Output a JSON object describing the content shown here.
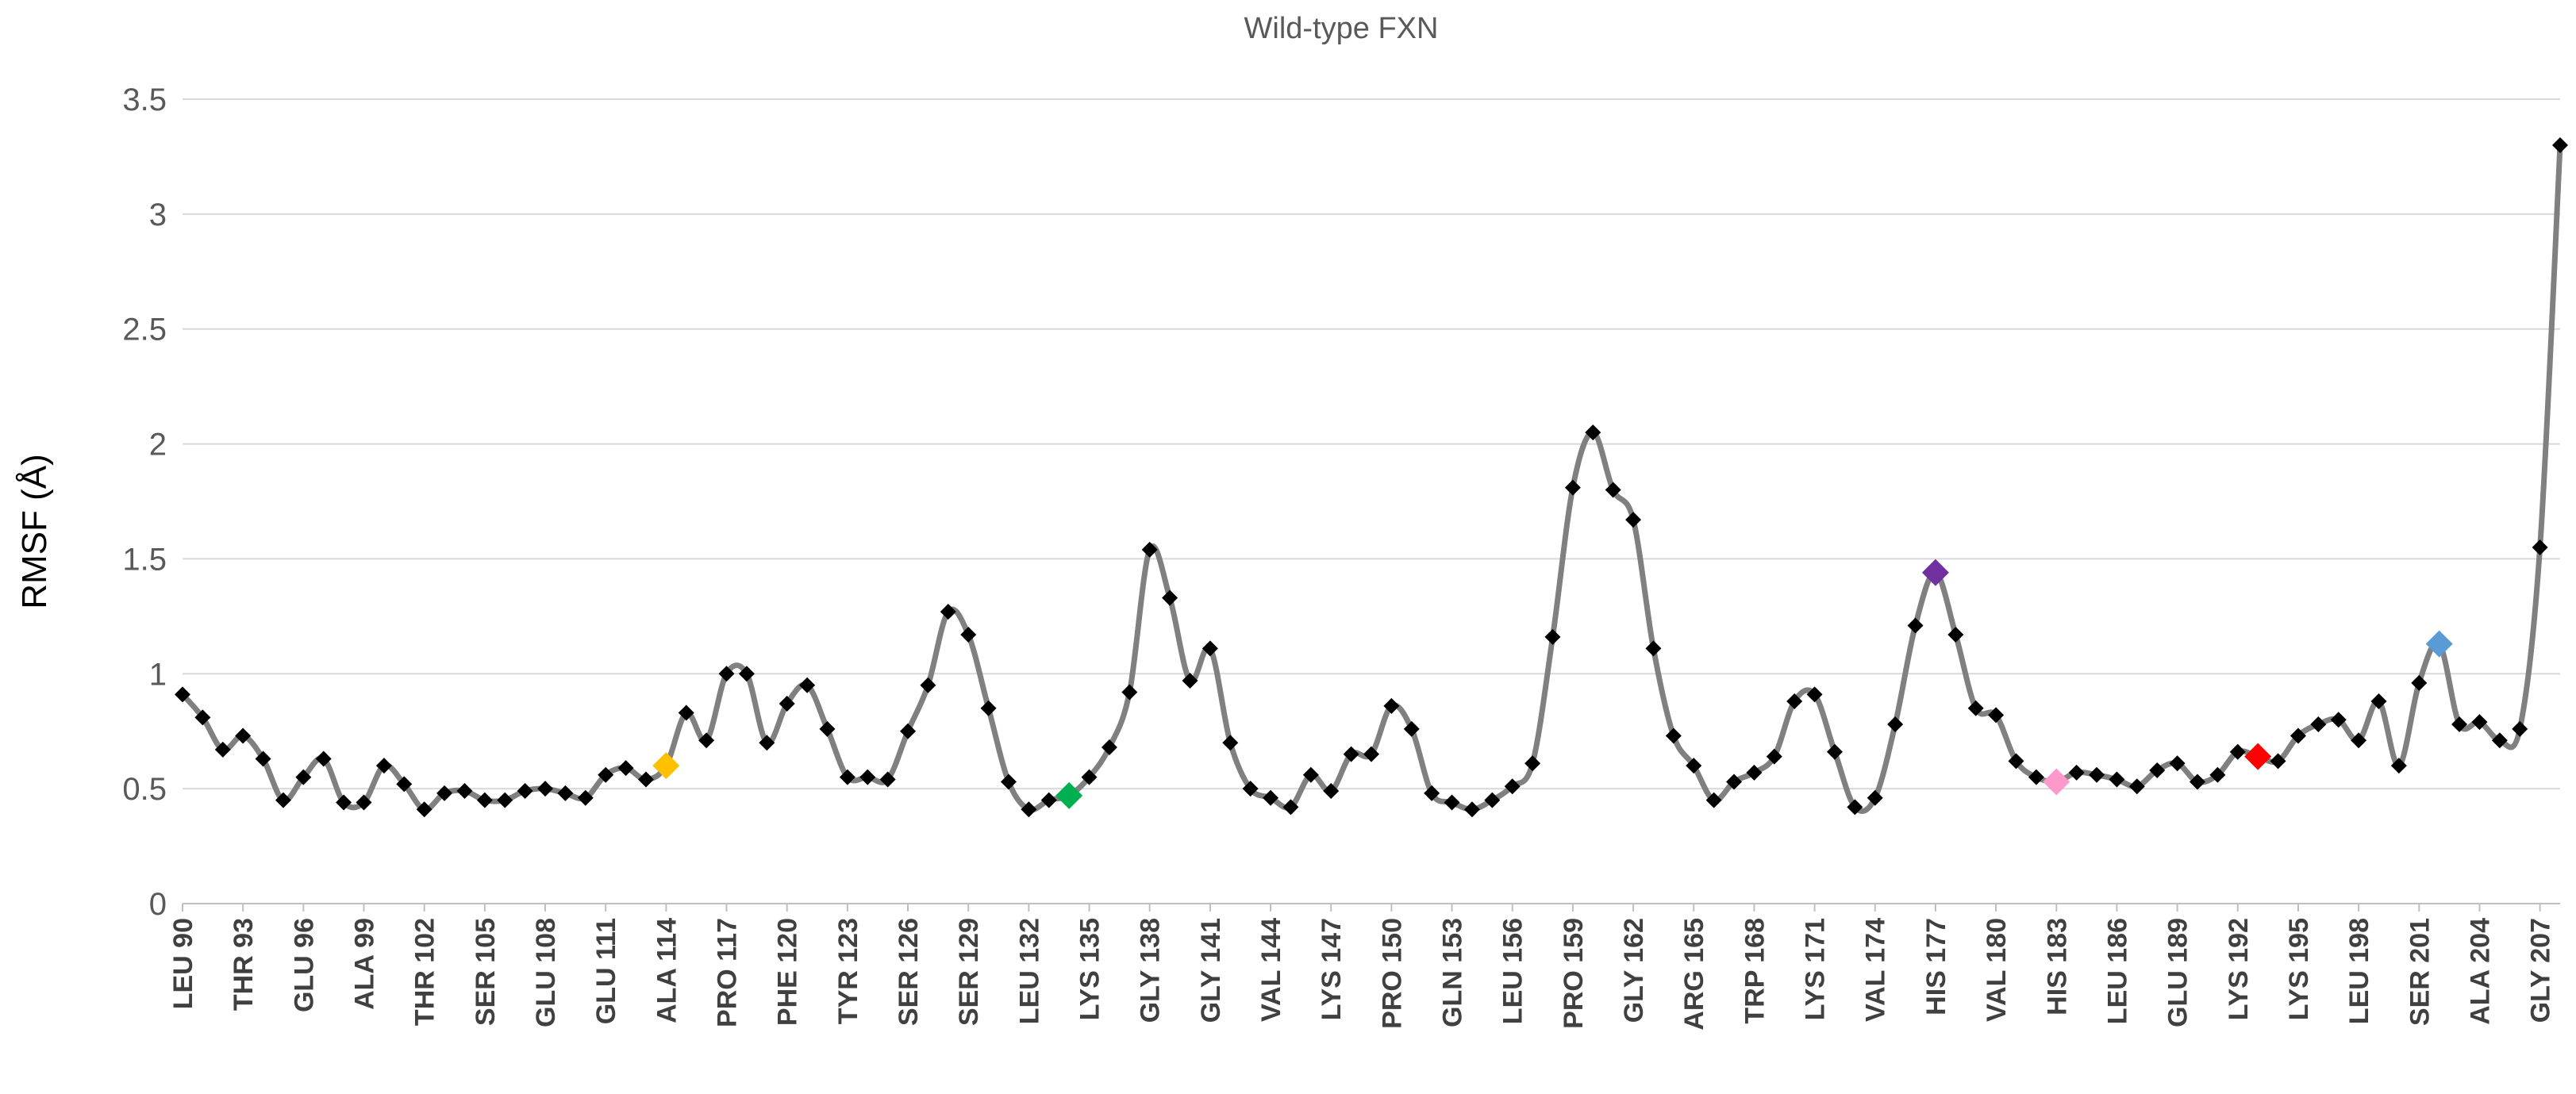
{
  "chart_data": {
    "type": "line",
    "title": "Wild-type FXN",
    "xlabel": "",
    "ylabel": "RMSF (Å)",
    "ylim": [
      0,
      3.5
    ],
    "yticks": [
      "0",
      "0.5",
      "1",
      "1.5",
      "2",
      "2.5",
      "3",
      "3.5"
    ],
    "grid": true,
    "legend": "none",
    "line_color": "#808080",
    "marker_color": "#000000",
    "x_tick_labels": [
      "LEU 90",
      "THR 93",
      "GLU 96",
      "ALA 99",
      "THR 102",
      "SER 105",
      "GLU 108",
      "GLU 111",
      "ALA 114",
      "PRO 117",
      "PHE 120",
      "TYR 123",
      "SER 126",
      "SER 129",
      "LEU 132",
      "LYS 135",
      "GLY 138",
      "GLY 141",
      "VAL 144",
      "LYS 147",
      "PRO 150",
      "GLN 153",
      "LEU 156",
      "PRO 159",
      "GLY 162",
      "ARG 165",
      "TRP 168",
      "LYS 171",
      "VAL 174",
      "HIS 177",
      "VAL 180",
      "HIS 183",
      "LEU 186",
      "GLU 189",
      "LYS 192",
      "LYS 195",
      "LEU 198",
      "SER 201",
      "ALA 204",
      "GLY 207"
    ],
    "residue_start": 90,
    "residue_end": 210,
    "values": [
      0.91,
      0.81,
      0.67,
      0.73,
      0.63,
      0.45,
      0.55,
      0.63,
      0.44,
      0.44,
      0.6,
      0.52,
      0.41,
      0.48,
      0.49,
      0.45,
      0.45,
      0.49,
      0.5,
      0.48,
      0.46,
      0.56,
      0.59,
      0.54,
      0.6,
      0.83,
      0.71,
      1.0,
      1.0,
      0.7,
      0.87,
      0.95,
      0.76,
      0.55,
      0.55,
      0.54,
      0.75,
      0.95,
      1.27,
      1.17,
      0.85,
      0.53,
      0.41,
      0.45,
      0.47,
      0.55,
      0.68,
      0.92,
      1.54,
      1.33,
      0.97,
      1.11,
      0.7,
      0.5,
      0.46,
      0.42,
      0.56,
      0.49,
      0.65,
      0.65,
      0.86,
      0.76,
      0.48,
      0.44,
      0.41,
      0.45,
      0.51,
      0.61,
      1.16,
      1.81,
      2.05,
      1.8,
      1.67,
      1.11,
      0.73,
      0.6,
      0.45,
      0.53,
      0.57,
      0.64,
      0.88,
      0.91,
      0.66,
      0.42,
      0.46,
      0.78,
      1.21,
      1.44,
      1.17,
      0.85,
      0.82,
      0.62,
      0.55,
      0.53,
      0.57,
      0.56,
      0.54,
      0.51,
      0.58,
      0.61,
      0.53,
      0.56,
      0.66,
      0.64,
      0.62,
      0.73,
      0.78,
      0.8,
      0.71,
      0.88,
      0.6,
      0.96,
      1.13,
      0.78,
      0.79,
      0.71,
      0.76,
      1.55,
      3.3
    ],
    "highlights": [
      {
        "residue": 114,
        "value": 0.6,
        "color": "#FFC000"
      },
      {
        "residue": 134,
        "value": 0.47,
        "color": "#00B050"
      },
      {
        "residue": 177,
        "value": 1.44,
        "color": "#7030A0"
      },
      {
        "residue": 183,
        "value": 0.53,
        "color": "#FF99CC"
      },
      {
        "residue": 193,
        "value": 0.64,
        "color": "#FF0000"
      },
      {
        "residue": 202,
        "value": 1.13,
        "color": "#5B9BD5"
      }
    ]
  }
}
